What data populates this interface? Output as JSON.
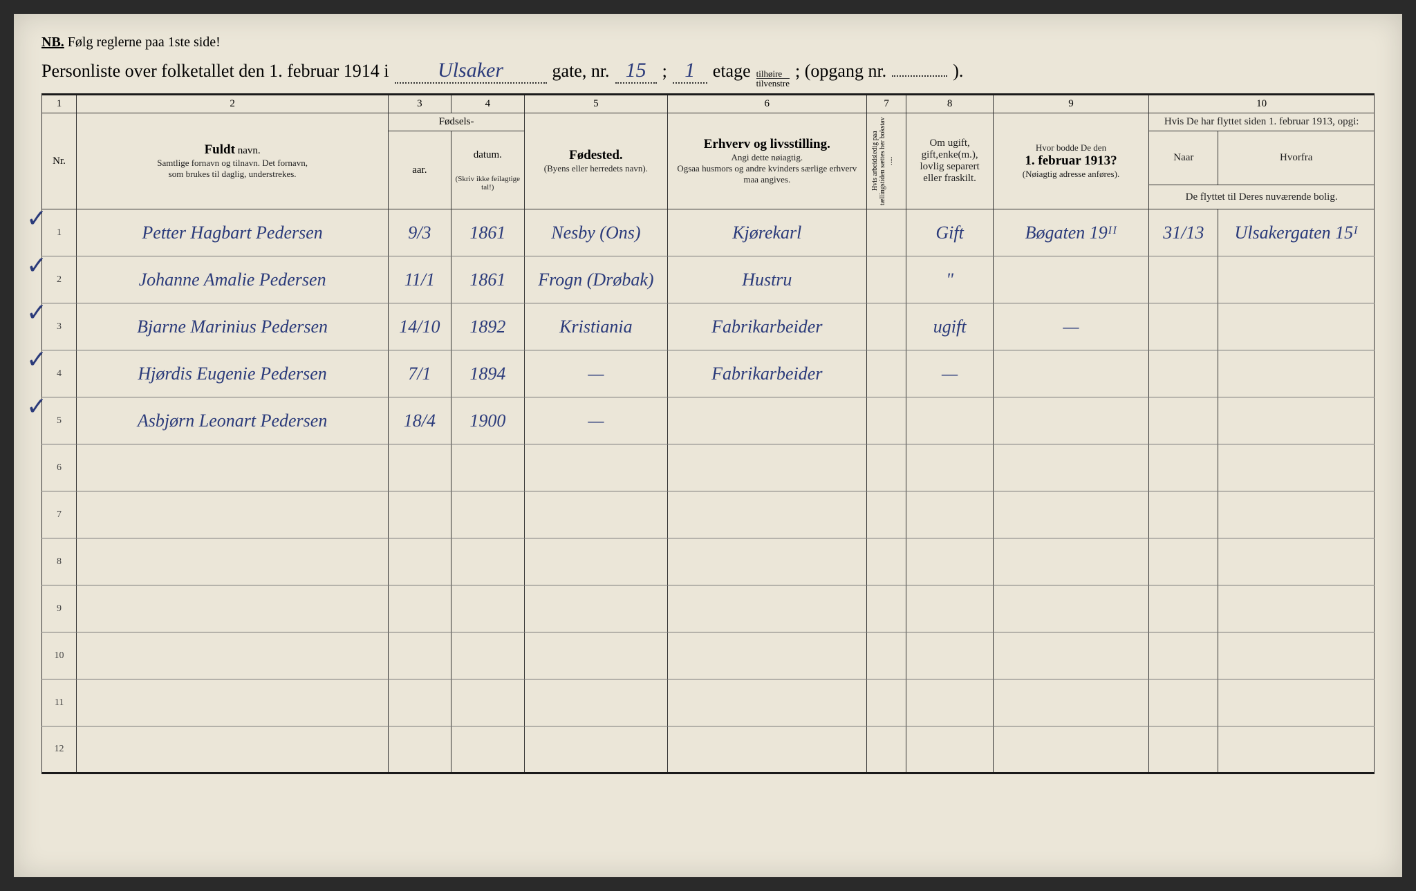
{
  "header": {
    "nb": "NB.",
    "nb_text": "Følg reglerne paa 1ste side!",
    "title_prefix": "Personliste over folketallet den 1. februar 1914 i",
    "street_name": "Ulsaker",
    "gate_label": "gate, nr.",
    "gate_nr": "15",
    "semicolon": ";",
    "etage_nr": "1",
    "etage_label": "etage",
    "etage_frac_top": "tilhøire",
    "etage_frac_bot": "tilvenstre",
    "opgang_label": "; (opgang nr.",
    "opgang_nr": "",
    "closing": ")."
  },
  "columns": {
    "c1": "1",
    "c2": "2",
    "c3": "3",
    "c4": "4",
    "c5": "5",
    "c6": "6",
    "c7": "7",
    "c8": "8",
    "c9": "9",
    "c10": "10",
    "nr": "Nr.",
    "name_bold": "Fuldt",
    "name_rest": "navn.",
    "name_sub1": "Samtlige fornavn og tilnavn.  Det fornavn,",
    "name_sub2": "som brukes til daglig, understrekes.",
    "birth_group": "Fødsels-",
    "birth_day": "aar.",
    "birth_year": "datum.",
    "birth_note": "(Skriv ikke feilagtige tal!)",
    "birthplace": "Fødested.",
    "birthplace_sub": "(Byens eller herredets navn).",
    "occupation": "Erhverv og livsstilling.",
    "occupation_sub1": "Angi dette nøiagtig.",
    "occupation_sub2": "Ogsaa husmors og andre kvinders særlige erhverv maa angives.",
    "col7_vert": "Hvis arbeidsledig paa tællingstiden sættes her bokstav .....",
    "marital": "Om ugift, gift,enke(m.), lovlig separert eller fraskilt.",
    "prev_addr": "Hvor bodde De den",
    "prev_addr_date": "1. februar 1913?",
    "prev_addr_sub": "(Nøiagtig adresse anføres).",
    "moved": "Hvis De har flyttet siden 1. februar 1913, opgi:",
    "moved_when": "Naar",
    "moved_from": "Hvorfra",
    "moved_sub": "De flyttet til Deres nuværende bolig."
  },
  "rows": [
    {
      "n": "1",
      "name": "Petter Hagbart Pedersen",
      "day": "9/3",
      "year": "1861",
      "place": "Nesby (Ons)",
      "occ": "Kjørekarl",
      "mar": "Gift",
      "prev": "Bøgaten 19ᴵᴵ",
      "when": "31/13",
      "from": "Ulsakergaten 15ᴵ"
    },
    {
      "n": "2",
      "name": "Johanne Amalie Pedersen",
      "day": "11/1",
      "year": "1861",
      "place": "Frogn (Drøbak)",
      "occ": "Hustru",
      "mar": "\"",
      "prev": "",
      "when": "",
      "from": ""
    },
    {
      "n": "3",
      "name": "Bjarne Marinius Pedersen",
      "day": "14/10",
      "year": "1892",
      "place": "Kristiania",
      "occ": "Fabrikarbeider",
      "mar": "ugift",
      "prev": "—",
      "when": "",
      "from": ""
    },
    {
      "n": "4",
      "name": "Hjørdis Eugenie Pedersen",
      "day": "7/1",
      "year": "1894",
      "place": "—",
      "occ": "Fabrikarbeider",
      "mar": "—",
      "prev": "",
      "when": "",
      "from": ""
    },
    {
      "n": "5",
      "name": "Asbjørn Leonart Pedersen",
      "day": "18/4",
      "year": "1900",
      "place": "—",
      "occ": "",
      "mar": "",
      "prev": "",
      "when": "",
      "from": ""
    },
    {
      "n": "6",
      "name": "",
      "day": "",
      "year": "",
      "place": "",
      "occ": "",
      "mar": "",
      "prev": "",
      "when": "",
      "from": ""
    },
    {
      "n": "7",
      "name": "",
      "day": "",
      "year": "",
      "place": "",
      "occ": "",
      "mar": "",
      "prev": "",
      "when": "",
      "from": ""
    },
    {
      "n": "8",
      "name": "",
      "day": "",
      "year": "",
      "place": "",
      "occ": "",
      "mar": "",
      "prev": "",
      "when": "",
      "from": ""
    },
    {
      "n": "9",
      "name": "",
      "day": "",
      "year": "",
      "place": "",
      "occ": "",
      "mar": "",
      "prev": "",
      "when": "",
      "from": ""
    },
    {
      "n": "10",
      "name": "",
      "day": "",
      "year": "",
      "place": "",
      "occ": "",
      "mar": "",
      "prev": "",
      "when": "",
      "from": ""
    },
    {
      "n": "11",
      "name": "",
      "day": "",
      "year": "",
      "place": "",
      "occ": "",
      "mar": "",
      "prev": "",
      "when": "",
      "from": ""
    },
    {
      "n": "12",
      "name": "",
      "day": "",
      "year": "",
      "place": "",
      "occ": "",
      "mar": "",
      "prev": "",
      "when": "",
      "from": ""
    }
  ],
  "checkmarks": [
    "✓",
    "✓",
    "✓",
    "✓",
    "✓"
  ]
}
